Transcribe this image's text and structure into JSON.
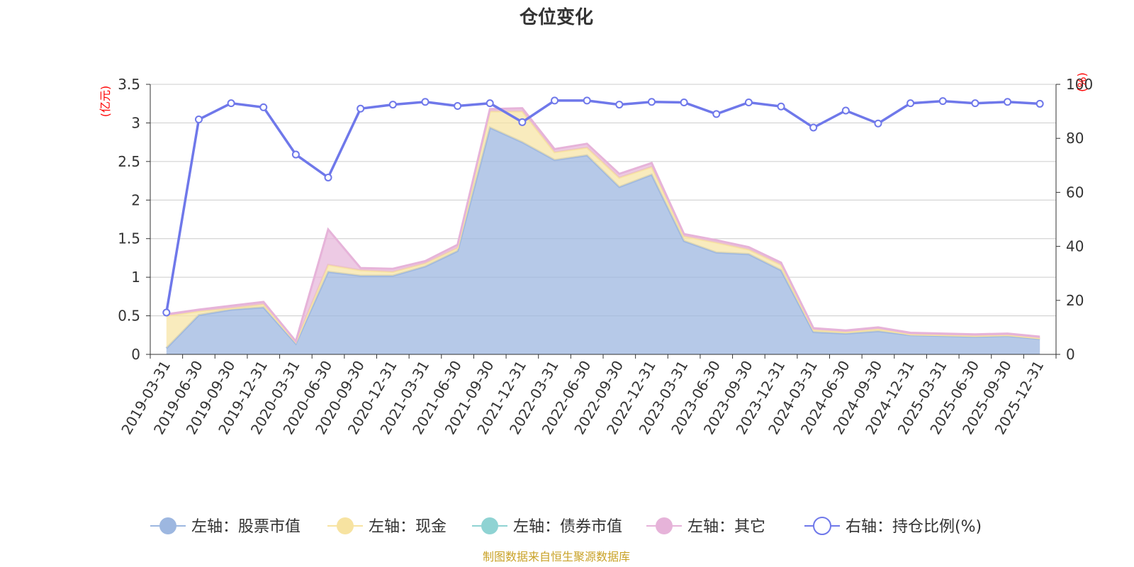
{
  "chart_data": {
    "type": "area",
    "title": "仓位变化",
    "left_unit": "(亿元)",
    "right_unit": "(%)",
    "left_ylim": [
      0,
      3.5
    ],
    "left_ticks": [
      "0",
      "0.5",
      "1",
      "1.5",
      "2",
      "2.5",
      "3",
      "3.5"
    ],
    "right_ylim": [
      0,
      100
    ],
    "right_ticks": [
      "0",
      "20",
      "40",
      "60",
      "80",
      "100"
    ],
    "categories": [
      "2019-03-31",
      "2019-06-30",
      "2019-09-30",
      "2019-12-31",
      "2020-03-31",
      "2020-06-30",
      "2020-09-30",
      "2020-12-31",
      "2021-03-31",
      "2021-06-30",
      "2021-09-30",
      "2021-12-31",
      "2022-03-31",
      "2022-06-30",
      "2022-09-30",
      "2022-12-31",
      "2023-03-31",
      "2023-06-30",
      "2023-09-30",
      "2023-12-31",
      "2024-03-31",
      "2024-06-30",
      "2024-09-30",
      "2024-12-31",
      "2025-03-31",
      "2025-06-30",
      "2025-09-30",
      "2025-12-31"
    ],
    "series": [
      {
        "name": "左轴：股票市值",
        "axis": "left",
        "stack": true,
        "color": "#9db7e0",
        "values": [
          0.08,
          0.51,
          0.58,
          0.61,
          0.14,
          1.07,
          1.02,
          1.02,
          1.14,
          1.34,
          2.94,
          2.75,
          2.52,
          2.58,
          2.17,
          2.33,
          1.47,
          1.32,
          1.3,
          1.09,
          0.29,
          0.27,
          0.3,
          0.25,
          0.24,
          0.23,
          0.24,
          0.2
        ]
      },
      {
        "name": "左轴：现金",
        "axis": "left",
        "stack": true,
        "color": "#f7e3a1",
        "values": [
          0.42,
          0.05,
          0.02,
          0.04,
          0.02,
          0.09,
          0.07,
          0.05,
          0.04,
          0.04,
          0.21,
          0.4,
          0.1,
          0.1,
          0.12,
          0.1,
          0.06,
          0.13,
          0.06,
          0.07,
          0.03,
          0.02,
          0.03,
          0.01,
          0.01,
          0.01,
          0.01,
          0.01
        ]
      },
      {
        "name": "左轴：债券市值",
        "axis": "left",
        "stack": true,
        "color": "#8fd3d3",
        "values": [
          0,
          0,
          0,
          0,
          0,
          0,
          0,
          0,
          0,
          0,
          0,
          0,
          0,
          0,
          0,
          0,
          0,
          0,
          0,
          0,
          0,
          0,
          0,
          0,
          0,
          0,
          0,
          0
        ]
      },
      {
        "name": "左轴：其它",
        "axis": "left",
        "stack": true,
        "color": "#e6b3d9",
        "values": [
          0.02,
          0.02,
          0.03,
          0.03,
          0.01,
          0.46,
          0.03,
          0.04,
          0.03,
          0.04,
          0.03,
          0.04,
          0.04,
          0.05,
          0.05,
          0.05,
          0.03,
          0.03,
          0.03,
          0.03,
          0.02,
          0.02,
          0.02,
          0.02,
          0.02,
          0.02,
          0.02,
          0.02
        ]
      },
      {
        "name": "右轴：持仓比例(%)",
        "axis": "right",
        "type": "line",
        "color": "#6f78ea",
        "values": [
          15.5,
          87.0,
          93.0,
          91.5,
          74.0,
          65.5,
          91.0,
          92.5,
          93.5,
          92.0,
          93.0,
          86.0,
          94.0,
          94.0,
          92.5,
          93.5,
          93.3,
          89.0,
          93.3,
          91.8,
          84.0,
          90.3,
          85.5,
          93.0,
          93.8,
          93.0,
          93.5,
          92.8
        ]
      }
    ],
    "grid": true,
    "legend_position": "bottom"
  },
  "source_text": "制图数据来自恒生聚源数据库"
}
